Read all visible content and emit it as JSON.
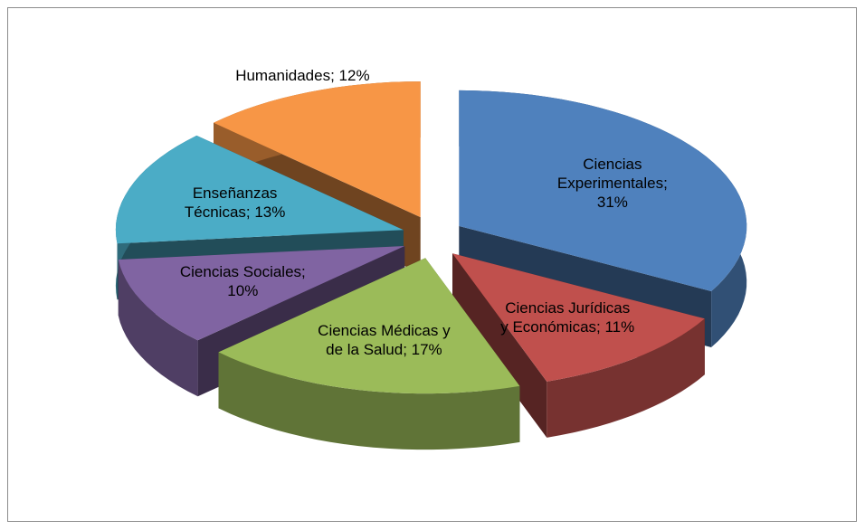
{
  "chart_data": {
    "type": "pie",
    "three_d": true,
    "exploded": true,
    "values": [
      31,
      11,
      17,
      10,
      13,
      12
    ],
    "value_labels": [
      "Ciencias Experimentales; 31%",
      "Ciencias Jurídicas y Económicas; 11%",
      "Ciencias Médicas y de la Salud; 17%",
      "Ciencias Sociales; 10%",
      "Enseñanzas Técnicas; 13%",
      "Humanidades; 12%"
    ],
    "colors": [
      "#4f81bd",
      "#c0504d",
      "#9bbb59",
      "#8064a2",
      "#4bacc6",
      "#f79646"
    ],
    "start_angle": -90
  }
}
